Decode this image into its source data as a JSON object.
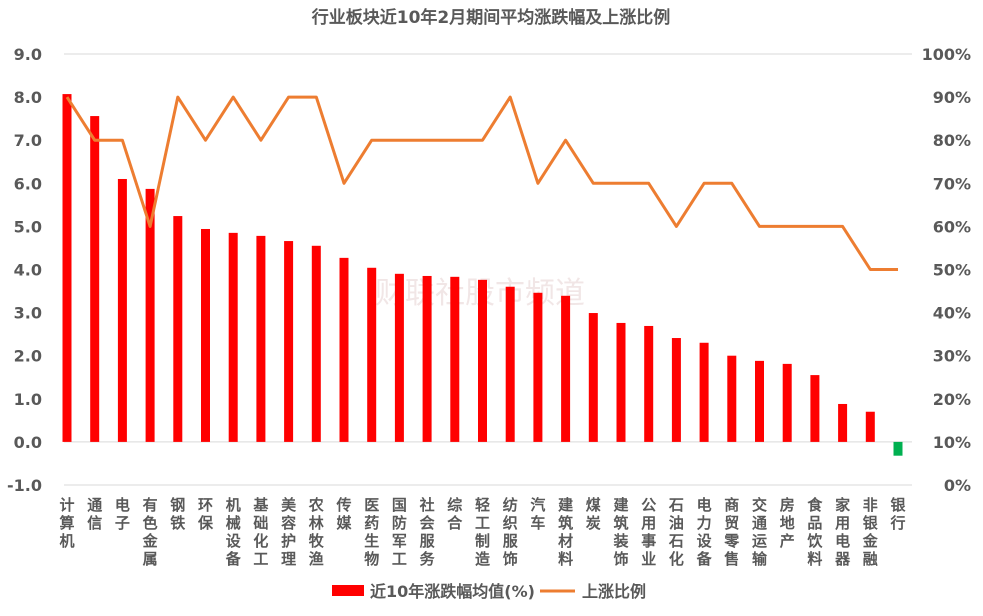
{
  "chart_data": {
    "type": "bar+line",
    "title": "行业板块近10年2月期间平均涨跌幅及上涨比例",
    "watermark": "财联社股市频道",
    "categories": [
      "计算机",
      "通信",
      "电子",
      "有色金属",
      "钢铁",
      "环保",
      "机械设备",
      "基础化工",
      "美容护理",
      "农林牧渔",
      "传媒",
      "医药生物",
      "国防军工",
      "社会服务",
      "综合",
      "轻工制造",
      "纺织服饰",
      "汽车",
      "建筑材料",
      "煤炭",
      "建筑装饰",
      "公用事业",
      "石油石化",
      "电力设备",
      "商贸零售",
      "交通运输",
      "房地产",
      "食品饮料",
      "家用电器",
      "非银金融",
      "银行"
    ],
    "series": [
      {
        "name": "近10年涨跌幅均值(%)",
        "type": "bar",
        "axis": "left",
        "color": "#ff0000",
        "negative_color": "#00b050",
        "values": [
          8.07,
          7.56,
          6.1,
          5.87,
          5.24,
          4.94,
          4.85,
          4.78,
          4.66,
          4.55,
          4.27,
          4.04,
          3.9,
          3.85,
          3.83,
          3.76,
          3.6,
          3.46,
          3.39,
          2.99,
          2.76,
          2.69,
          2.41,
          2.3,
          2.0,
          1.88,
          1.81,
          1.55,
          0.88,
          0.7,
          -0.32
        ]
      },
      {
        "name": "上涨比例",
        "type": "line",
        "axis": "right",
        "color": "#ed7d31",
        "values": [
          90,
          80,
          80,
          60,
          90,
          80,
          90,
          80,
          90,
          90,
          70,
          80,
          80,
          80,
          80,
          80,
          90,
          70,
          80,
          70,
          70,
          70,
          60,
          70,
          70,
          60,
          60,
          60,
          60,
          50,
          50
        ]
      }
    ],
    "left_axis": {
      "ylim": [
        -1.0,
        9.0
      ],
      "ticks": [
        "-1.0",
        "0.0",
        "1.0",
        "2.0",
        "3.0",
        "4.0",
        "5.0",
        "6.0",
        "7.0",
        "8.0",
        "9.0"
      ]
    },
    "right_axis": {
      "ylim": [
        0,
        100
      ],
      "ticks": [
        "0%",
        "10%",
        "20%",
        "30%",
        "40%",
        "50%",
        "60%",
        "70%",
        "80%",
        "90%",
        "100%"
      ]
    },
    "legend": "bottom",
    "grid": false
  }
}
